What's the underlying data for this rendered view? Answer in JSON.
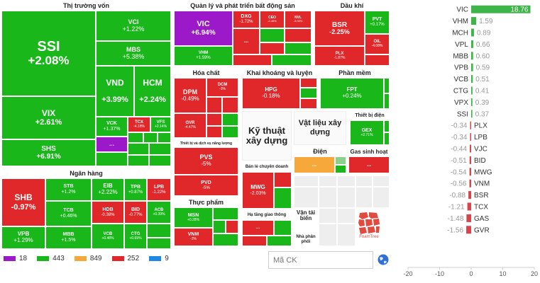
{
  "sectors": {
    "thi_truong_von": {
      "title": "Thị trường vốn"
    },
    "quan_ly_bds": {
      "title": "Quản lý và phát triển bất động sản"
    },
    "dau_khi": {
      "title": "Dầu khí"
    },
    "hoa_chat": {
      "title": "Hóa chất"
    },
    "khai_khoang": {
      "title": "Khai khoáng và luyện kim"
    },
    "phan_mem": {
      "title": "Phần mềm"
    },
    "ngan_hang": {
      "title": "Ngân hàng"
    },
    "thiet_bi_dien": {
      "title": "Thiết bị điện"
    },
    "thiet_bi_nang_luong": {
      "title": "Thiết bị và dịch vụ năng lượng"
    },
    "ky_thuat_xay_dung": {
      "title": "Kỹ thuật xây dựng"
    },
    "vat_lieu_xay_dung": {
      "title": "Vật liệu xây dựng"
    },
    "dien": {
      "title": "Điện"
    },
    "gas_sinh_hoat": {
      "title": "Gas sinh hoạt"
    },
    "ban_le_chuyen_doanh": {
      "title": "Bán lẻ chuyên doanh"
    },
    "thuc_pham": {
      "title": "Thực phẩm"
    },
    "ha_tang_giao_thong": {
      "title": "Hạ tầng giao thông"
    },
    "van_tai_bien": {
      "title": "Vận tải biển"
    },
    "nha_phan_phoi": {
      "title": "Nhà phân phối"
    }
  },
  "tiles": {
    "SSI": {
      "t": "SSI",
      "p": "+2.08%"
    },
    "VCI": {
      "t": "VCI",
      "p": "+1.22%"
    },
    "MBS": {
      "t": "MBS",
      "p": "+5.38%"
    },
    "VND": {
      "t": "VND",
      "p": "+3.99%"
    },
    "HCM": {
      "t": "HCM",
      "p": "+2.24%"
    },
    "VIX": {
      "t": "VIX",
      "p": "+2.61%"
    },
    "VCK": {
      "t": "VCK",
      "p": "+1.37%"
    },
    "TCX": {
      "t": "TCX",
      "p": "-4.18%"
    },
    "VFS": {
      "t": "VFS",
      "p": "+2.14%"
    },
    "SHS": {
      "t": "SHS",
      "p": "+6.91%"
    },
    "VIC": {
      "t": "VIC",
      "p": "+6.94%"
    },
    "DXG": {
      "t": "DXG",
      "p": "-1.72%"
    },
    "VHM": {
      "t": "VHM",
      "p": "+1.59%"
    },
    "CEO": {
      "t": "CEO",
      "p": "-2.46%"
    },
    "NVL": {
      "t": "NVL",
      "p": "-3.03%"
    },
    "BSR": {
      "t": "BSR",
      "p": "-2.25%"
    },
    "PVT": {
      "t": "PVT",
      "p": "+0.17%"
    },
    "OIL": {
      "t": "OIL",
      "p": "-4.08%"
    },
    "PLX": {
      "t": "PLX",
      "p": "-1.87%"
    },
    "DPM": {
      "t": "DPM",
      "p": "-0.49%"
    },
    "DCM": {
      "t": "DCM",
      "p": "-3%"
    },
    "GVR": {
      "t": "GVR",
      "p": "-4.47%"
    },
    "HPG": {
      "t": "HPG",
      "p": "-0.18%"
    },
    "FPT": {
      "t": "FPT",
      "p": "+0.24%"
    },
    "GEX": {
      "t": "GEX",
      "p": "+2.71%"
    },
    "PVS": {
      "t": "PVS",
      "p": "-5%"
    },
    "PVD": {
      "t": "PVD",
      "p": "-5%"
    },
    "MWG": {
      "t": "MWG",
      "p": "-2.03%"
    },
    "MSN": {
      "t": "MSN",
      "p": "+0.28%"
    },
    "VNM": {
      "t": "VNM",
      "p": "-2%"
    },
    "SHB": {
      "t": "SHB",
      "p": "-0.97%"
    },
    "STB": {
      "t": "STB",
      "p": "+1.2%"
    },
    "EIB": {
      "t": "EIB",
      "p": "+2.22%"
    },
    "TPB": {
      "t": "TPB",
      "p": "+0.87%"
    },
    "LPB": {
      "t": "LPB",
      "p": "-1.22%"
    },
    "TCB": {
      "t": "TCB",
      "p": "+0.46%"
    },
    "HDB": {
      "t": "HDB",
      "p": "-0.38%"
    },
    "BID": {
      "t": "BID",
      "p": "-0.77%"
    },
    "ACB": {
      "t": "ACB",
      "p": "+0.39%"
    },
    "VPB": {
      "t": "VPB",
      "p": "+1.29%"
    },
    "MBB": {
      "t": "MBB",
      "p": "+1.5%"
    },
    "VCB": {
      "t": "VCB",
      "p": "+0.48%"
    },
    "CTG": {
      "t": "CTG",
      "p": "+0.69%"
    }
  },
  "ellipsis": "...",
  "legend": [
    {
      "count": "18",
      "color": "#9b19c8"
    },
    {
      "count": "443",
      "color": "#19b71a"
    },
    {
      "count": "849",
      "color": "#f6a93a"
    },
    {
      "count": "252",
      "color": "#e0282a"
    },
    {
      "count": "9",
      "color": "#1e88e5"
    }
  ],
  "search": {
    "placeholder": "Mã CK"
  },
  "watermark": {
    "text": "FoamTree"
  },
  "chart_data": {
    "type": "bar",
    "orientation": "horizontal",
    "title": "",
    "xlabel": "",
    "ylabel": "",
    "xlim": [
      -20,
      20
    ],
    "xticks": [
      "-20",
      "-10",
      "0",
      "10",
      "20"
    ],
    "categories": [
      "VIC",
      "VHM",
      "MCH",
      "VPL",
      "MBB",
      "VPB",
      "VCB",
      "CTG",
      "VPX",
      "SSI",
      "PLX",
      "LPB",
      "VJC",
      "BID",
      "MWG",
      "VNM",
      "BSR",
      "TCX",
      "GAS",
      "GVR"
    ],
    "values": [
      18.76,
      1.59,
      0.89,
      0.66,
      0.6,
      0.59,
      0.51,
      0.41,
      0.39,
      0.37,
      -0.34,
      -0.34,
      -0.44,
      -0.51,
      -0.54,
      -0.56,
      -0.88,
      -1.21,
      -1.48,
      -1.56
    ],
    "labels": [
      "18.76",
      "1.59",
      "0.89",
      "0.66",
      "0.60",
      "0.59",
      "0.51",
      "0.41",
      "0.39",
      "0.37",
      "-0.34",
      "-0.34",
      "-0.44",
      "-0.51",
      "-0.54",
      "-0.56",
      "-0.88",
      "-1.21",
      "-1.48",
      "-1.56"
    ],
    "colors": {
      "positive": "#3fb549",
      "negative": "#d9434a"
    }
  }
}
